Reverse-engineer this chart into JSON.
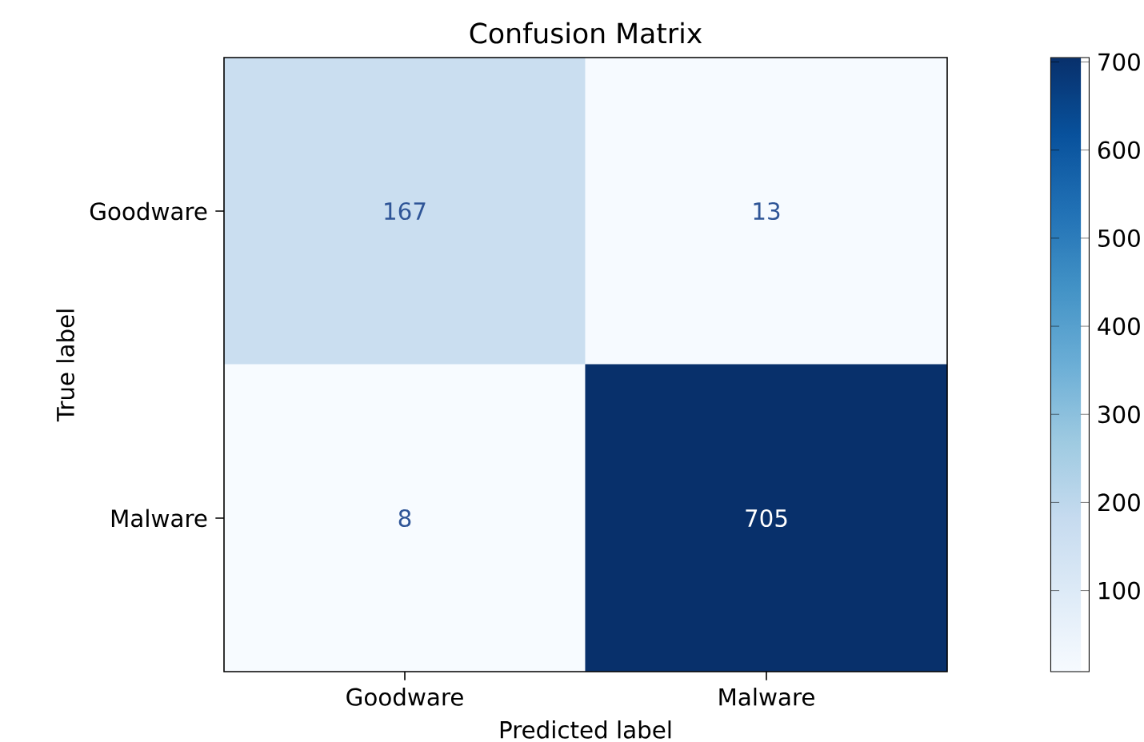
{
  "chart_data": {
    "type": "heatmap",
    "title": "Confusion Matrix",
    "xlabel": "Predicted label",
    "ylabel": "True label",
    "categories": [
      "Goodware",
      "Malware"
    ],
    "y_categories": [
      "Goodware",
      "Malware"
    ],
    "cells": [
      [
        167,
        13
      ],
      [
        8,
        705
      ]
    ],
    "clim": [
      8,
      705
    ],
    "cticks": [
      100,
      200,
      300,
      400,
      500,
      600,
      700
    ],
    "data_labels": true
  }
}
